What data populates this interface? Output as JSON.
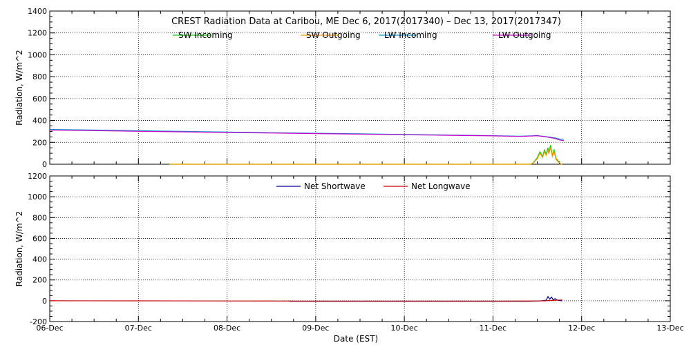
{
  "title": "CREST Radiation Data at Caribou, ME   Dec  6, 2017(2017340) – Dec 13, 2017(2017347)",
  "chart_data": [
    {
      "type": "line",
      "ylabel": "Radiation, W/m^2",
      "ylim": [
        0,
        1400
      ],
      "yticks": [
        0,
        200,
        400,
        600,
        800,
        1000,
        1200,
        1400
      ],
      "xlim": [
        0,
        7
      ],
      "grid": true,
      "legend_placement": "top",
      "series": [
        {
          "name": "SW Incoming",
          "color": "#00cc00",
          "x": [
            1.35,
            2.0,
            3.0,
            4.0,
            5.0,
            5.42,
            5.45,
            5.5,
            5.53,
            5.56,
            5.58,
            5.6,
            5.62,
            5.63,
            5.65,
            5.67,
            5.69,
            5.71,
            5.73,
            5.76,
            5.78
          ],
          "y": [
            0,
            0,
            0,
            0,
            0,
            0,
            10,
            60,
            115,
            70,
            130,
            95,
            150,
            110,
            175,
            80,
            135,
            55,
            35,
            5,
            0
          ]
        },
        {
          "name": "SW Outgoing",
          "color": "#ff9900",
          "x": [
            1.35,
            2.0,
            3.0,
            4.0,
            5.0,
            5.42,
            5.45,
            5.5,
            5.53,
            5.56,
            5.58,
            5.6,
            5.62,
            5.63,
            5.65,
            5.67,
            5.69,
            5.71,
            5.73,
            5.76,
            5.78
          ],
          "y": [
            0,
            0,
            0,
            0,
            0,
            0,
            8,
            50,
            100,
            60,
            115,
            80,
            130,
            95,
            150,
            70,
            115,
            45,
            25,
            5,
            0
          ]
        },
        {
          "name": "LW Incoming",
          "color": "#0099cc",
          "x": [
            0,
            0.5,
            1.0,
            1.5,
            2.0,
            2.5,
            3.0,
            3.5,
            4.0,
            4.5,
            5.0,
            5.3,
            5.5,
            5.6,
            5.7,
            5.75,
            5.8
          ],
          "y": [
            318,
            312,
            306,
            300,
            294,
            288,
            283,
            278,
            272,
            267,
            261,
            256,
            262,
            252,
            240,
            230,
            228
          ]
        },
        {
          "name": "LW Outgoing",
          "color": "#cc00cc",
          "x": [
            0,
            0.5,
            1.0,
            1.5,
            2.0,
            2.5,
            3.0,
            3.5,
            4.0,
            4.5,
            5.0,
            5.3,
            5.5,
            5.6,
            5.7,
            5.75,
            5.8
          ],
          "y": [
            312,
            307,
            301,
            296,
            290,
            285,
            280,
            275,
            269,
            264,
            259,
            254,
            260,
            250,
            235,
            222,
            215
          ]
        }
      ]
    },
    {
      "type": "line",
      "xlabel": "Date (EST)",
      "ylabel": "Radiation, W/m^2",
      "ylim": [
        -200,
        1200
      ],
      "yticks": [
        -200,
        0,
        200,
        400,
        600,
        800,
        1000,
        1200
      ],
      "xlim": [
        0,
        7
      ],
      "categories": [
        "06-Dec",
        "07-Dec",
        "08-Dec",
        "09-Dec",
        "10-Dec",
        "11-Dec",
        "12-Dec",
        "13-Dec"
      ],
      "grid": true,
      "legend_placement": "top",
      "series": [
        {
          "name": "Net Shortwave",
          "color": "#000099",
          "x": [
            2.7,
            3.0,
            4.0,
            5.0,
            5.4,
            5.5,
            5.55,
            5.6,
            5.62,
            5.64,
            5.66,
            5.68,
            5.7,
            5.73,
            5.76,
            5.78
          ],
          "y": [
            -5,
            -5,
            -5,
            -5,
            -5,
            -3,
            0,
            5,
            40,
            15,
            35,
            10,
            20,
            5,
            2,
            0
          ]
        },
        {
          "name": "Net Longwave",
          "color": "#cc0000",
          "x": [
            0,
            1.0,
            2.0,
            3.0,
            4.0,
            5.0,
            5.5,
            5.6,
            5.7,
            5.78
          ],
          "y": [
            0,
            -1,
            -2,
            -3,
            -3,
            -3,
            -2,
            0,
            5,
            8
          ]
        }
      ]
    }
  ]
}
